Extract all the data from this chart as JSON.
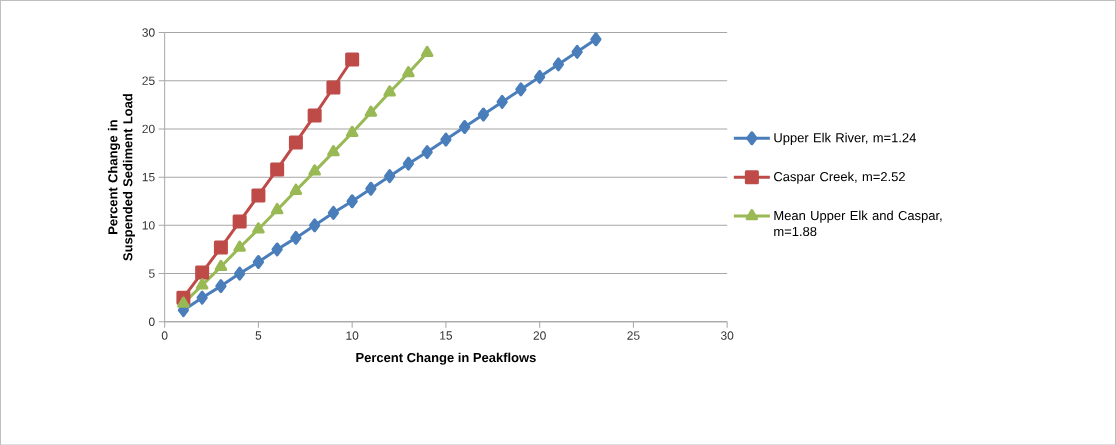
{
  "chart_data": {
    "type": "line",
    "xlabel": "Percent Change in Peakflows",
    "ylabel": "Percent Change in Suspended Sediment Load",
    "xlim": [
      0,
      30
    ],
    "xticks": [
      0,
      5,
      10,
      15,
      20,
      25,
      30
    ],
    "ylim": [
      0,
      30
    ],
    "yticks": [
      0,
      5,
      10,
      15,
      20,
      25,
      30
    ],
    "grid": "y",
    "legend": "right",
    "line_style": "solid",
    "series": [
      {
        "name": "Upper Elk River, m=1.24",
        "color": "#4a7ebb",
        "marker": "diamond",
        "x": [
          1,
          2,
          3,
          4,
          5,
          6,
          7,
          8,
          9,
          10,
          11,
          12,
          13,
          14,
          15,
          16,
          17,
          18,
          19,
          20,
          21,
          22,
          23
        ],
        "values": [
          1.2,
          2.5,
          3.7,
          5.0,
          6.2,
          7.5,
          8.7,
          10.0,
          11.3,
          12.5,
          13.8,
          15.1,
          16.4,
          17.6,
          18.9,
          20.2,
          21.5,
          22.8,
          24.1,
          25.4,
          26.7,
          28.0,
          29.3
        ]
      },
      {
        "name": "Caspar Creek, m=2.52",
        "color": "#be4b48",
        "marker": "square",
        "x": [
          1,
          2,
          3,
          4,
          5,
          6,
          7,
          8,
          9,
          10
        ],
        "values": [
          2.5,
          5.1,
          7.7,
          10.4,
          13.1,
          15.8,
          18.6,
          21.4,
          24.3,
          27.2
        ]
      },
      {
        "name": "Mean Upper Elk and Caspar, m=1.88",
        "color": "#98b954",
        "marker": "triangle",
        "x": [
          1,
          2,
          3,
          4,
          5,
          6,
          7,
          8,
          9,
          10,
          11,
          12,
          13,
          14
        ],
        "values": [
          1.9,
          3.8,
          5.7,
          7.7,
          9.6,
          11.6,
          13.6,
          15.6,
          17.6,
          19.6,
          21.7,
          23.8,
          25.8,
          27.9
        ]
      }
    ]
  }
}
